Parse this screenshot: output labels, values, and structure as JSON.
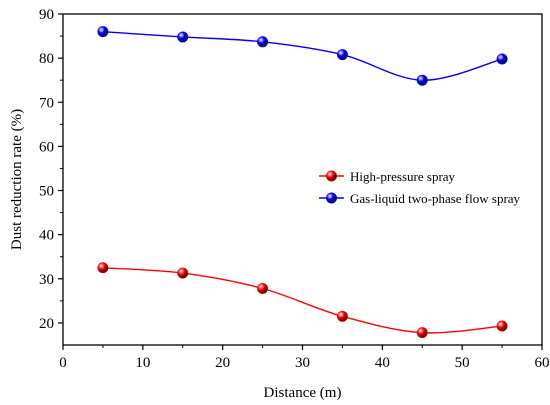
{
  "chart_data": {
    "type": "line",
    "xlabel": "Distance (m)",
    "ylabel": "Dust reduction rate (%)",
    "xlim": [
      0,
      60
    ],
    "ylim": [
      15,
      90
    ],
    "xticks": [
      0,
      10,
      20,
      30,
      40,
      50,
      60
    ],
    "yticks": [
      20,
      30,
      40,
      50,
      60,
      70,
      80,
      90
    ],
    "grid": false,
    "legend_position": "right",
    "x": [
      5,
      15,
      25,
      35,
      45,
      55
    ],
    "series": [
      {
        "name": "High-pressure spray",
        "color": "#ff0000",
        "values": [
          32.5,
          31.3,
          27.8,
          21.5,
          17.8,
          19.3
        ]
      },
      {
        "name": "Gas-liquid two-phase flow spray",
        "color": "#0000ff",
        "values": [
          86.0,
          84.8,
          83.7,
          80.8,
          75.0,
          79.8
        ]
      }
    ]
  }
}
